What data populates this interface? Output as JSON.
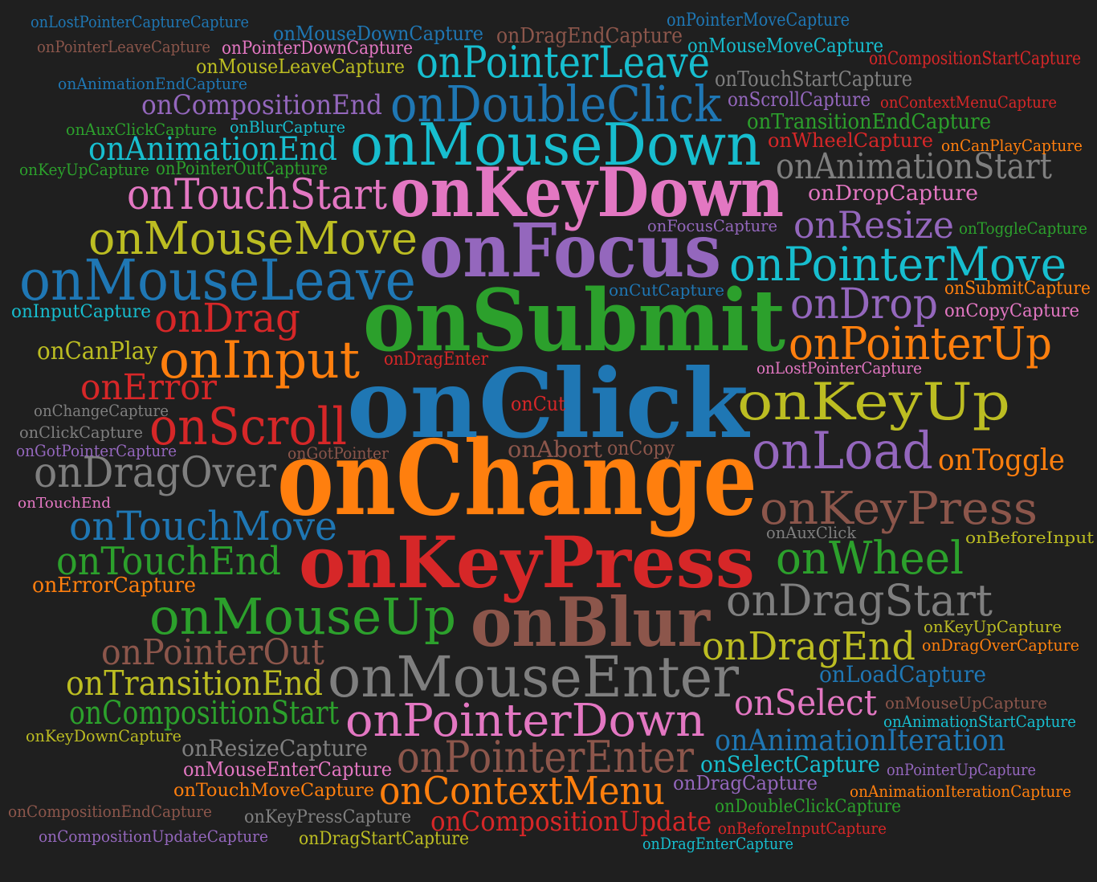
{
  "palette": {
    "background": "#1f1f1f",
    "blue": "#1f77b4",
    "orange": "#ff7f0e",
    "green": "#2ca02c",
    "red": "#d62728",
    "purple": "#9467bd",
    "brown": "#8c564b",
    "pink": "#e377c2",
    "gray": "#7f7f7f",
    "olive": "#bcbd22",
    "cyan": "#17becf"
  },
  "words": [
    {
      "text": "onChange",
      "color": "orange"
    },
    {
      "text": "onClick",
      "color": "blue"
    },
    {
      "text": "onSubmit",
      "color": "green"
    },
    {
      "text": "onKeyPress",
      "color": "red"
    },
    {
      "text": "onFocus",
      "color": "purple"
    },
    {
      "text": "onKeyDown",
      "color": "pink"
    },
    {
      "text": "onBlur",
      "color": "brown"
    },
    {
      "text": "onMouseDown",
      "color": "cyan"
    },
    {
      "text": "onMouseEnter",
      "color": "gray"
    },
    {
      "text": "onDoubleClick",
      "color": "blue"
    },
    {
      "text": "onMouseLeave",
      "color": "blue"
    },
    {
      "text": "onPointerLeave",
      "color": "cyan"
    },
    {
      "text": "onMouseMove",
      "color": "olive"
    },
    {
      "text": "onPointerMove",
      "color": "cyan"
    },
    {
      "text": "onKeyUp",
      "color": "olive"
    },
    {
      "text": "onInput",
      "color": "orange"
    },
    {
      "text": "onScroll",
      "color": "red"
    },
    {
      "text": "onPointerUp",
      "color": "orange"
    },
    {
      "text": "onLoad",
      "color": "purple"
    },
    {
      "text": "onKeyPress",
      "color": "brown"
    },
    {
      "text": "onMouseUp",
      "color": "green"
    },
    {
      "text": "onPointerDown",
      "color": "pink"
    },
    {
      "text": "onTouchStart",
      "color": "pink"
    },
    {
      "text": "onDragOver",
      "color": "gray"
    },
    {
      "text": "onTouchMove",
      "color": "blue"
    },
    {
      "text": "onDragStart",
      "color": "gray"
    },
    {
      "text": "onPointerEnter",
      "color": "brown"
    },
    {
      "text": "onContextMenu",
      "color": "orange"
    },
    {
      "text": "onWheel",
      "color": "green"
    },
    {
      "text": "onDrop",
      "color": "purple"
    },
    {
      "text": "onTouchEnd",
      "color": "green"
    },
    {
      "text": "onDragEnd",
      "color": "olive"
    },
    {
      "text": "onAnimationStart",
      "color": "gray"
    },
    {
      "text": "onAnimationEnd",
      "color": "cyan"
    },
    {
      "text": "onResize",
      "color": "purple"
    },
    {
      "text": "onDrag",
      "color": "red"
    },
    {
      "text": "onError",
      "color": "red"
    },
    {
      "text": "onPointerOut",
      "color": "brown"
    },
    {
      "text": "onTransitionEnd",
      "color": "olive"
    },
    {
      "text": "onCompositionStart",
      "color": "green"
    },
    {
      "text": "onCompositionEnd",
      "color": "purple"
    },
    {
      "text": "onSelect",
      "color": "pink"
    },
    {
      "text": "onAnimationIteration",
      "color": "blue"
    },
    {
      "text": "onCompositionUpdate",
      "color": "red"
    },
    {
      "text": "onToggle",
      "color": "orange"
    },
    {
      "text": "onCanPlay",
      "color": "olive"
    },
    {
      "text": "onAbort",
      "color": "brown"
    },
    {
      "text": "onCut",
      "color": "red"
    },
    {
      "text": "onCopy",
      "color": "brown"
    },
    {
      "text": "onDragEnter",
      "color": "red"
    },
    {
      "text": "onGotPointer",
      "color": "brown"
    },
    {
      "text": "onAuxClick",
      "color": "gray"
    },
    {
      "text": "onBeforeInput",
      "color": "olive"
    },
    {
      "text": "onTouchEnd",
      "color": "pink"
    },
    {
      "text": "onLostPointerCaptureCapture",
      "color": "blue"
    },
    {
      "text": "onMouseDownCapture",
      "color": "blue"
    },
    {
      "text": "onDragEndCapture",
      "color": "brown"
    },
    {
      "text": "onPointerMoveCapture",
      "color": "blue"
    },
    {
      "text": "onPointerLeaveCapture",
      "color": "brown"
    },
    {
      "text": "onPointerDownCapture",
      "color": "pink"
    },
    {
      "text": "onMouseMoveCapture",
      "color": "cyan"
    },
    {
      "text": "onMouseLeaveCapture",
      "color": "olive"
    },
    {
      "text": "onCompositionStartCapture",
      "color": "red"
    },
    {
      "text": "onAnimationEndCapture",
      "color": "blue"
    },
    {
      "text": "onTouchStartCapture",
      "color": "gray"
    },
    {
      "text": "onScrollCapture",
      "color": "purple"
    },
    {
      "text": "onContextMenuCapture",
      "color": "red"
    },
    {
      "text": "onAuxClickCapture",
      "color": "green"
    },
    {
      "text": "onBlurCapture",
      "color": "cyan"
    },
    {
      "text": "onTransitionEndCapture",
      "color": "green"
    },
    {
      "text": "onWheelCapture",
      "color": "red"
    },
    {
      "text": "onCanPlayCapture",
      "color": "orange"
    },
    {
      "text": "onKeyUpCapture",
      "color": "green"
    },
    {
      "text": "onPointerOutCapture",
      "color": "green"
    },
    {
      "text": "onDropCapture",
      "color": "pink"
    },
    {
      "text": "onFocusCapture",
      "color": "purple"
    },
    {
      "text": "onToggleCapture",
      "color": "green"
    },
    {
      "text": "onCutCapture",
      "color": "blue"
    },
    {
      "text": "onSubmitCapture",
      "color": "orange"
    },
    {
      "text": "onInputCapture",
      "color": "cyan"
    },
    {
      "text": "onCopyCapture",
      "color": "pink"
    },
    {
      "text": "onLostPointerCapture",
      "color": "pink"
    },
    {
      "text": "onChangeCapture",
      "color": "gray"
    },
    {
      "text": "onClickCapture",
      "color": "gray"
    },
    {
      "text": "onGotPointerCapture",
      "color": "purple"
    },
    {
      "text": "onErrorCapture",
      "color": "orange"
    },
    {
      "text": "onKeyUpCapture",
      "color": "olive"
    },
    {
      "text": "onDragOverCapture",
      "color": "orange"
    },
    {
      "text": "onLoadCapture",
      "color": "blue"
    },
    {
      "text": "onMouseUpCapture",
      "color": "brown"
    },
    {
      "text": "onAnimationStartCapture",
      "color": "cyan"
    },
    {
      "text": "onKeyDownCapture",
      "color": "olive"
    },
    {
      "text": "onResizeCapture",
      "color": "gray"
    },
    {
      "text": "onMouseEnterCapture",
      "color": "pink"
    },
    {
      "text": "onSelectCapture",
      "color": "cyan"
    },
    {
      "text": "onPointerUpCapture",
      "color": "purple"
    },
    {
      "text": "onDragCapture",
      "color": "purple"
    },
    {
      "text": "onTouchMoveCapture",
      "color": "orange"
    },
    {
      "text": "onAnimationIterationCapture",
      "color": "orange"
    },
    {
      "text": "onCompositionEndCapture",
      "color": "brown"
    },
    {
      "text": "onKeyPressCapture",
      "color": "gray"
    },
    {
      "text": "onDoubleClickCapture",
      "color": "green"
    },
    {
      "text": "onBeforeInputCapture",
      "color": "red"
    },
    {
      "text": "onCompositionUpdateCapture",
      "color": "purple"
    },
    {
      "text": "onDragStartCapture",
      "color": "olive"
    },
    {
      "text": "onDragEnterCapture",
      "color": "cyan"
    }
  ]
}
